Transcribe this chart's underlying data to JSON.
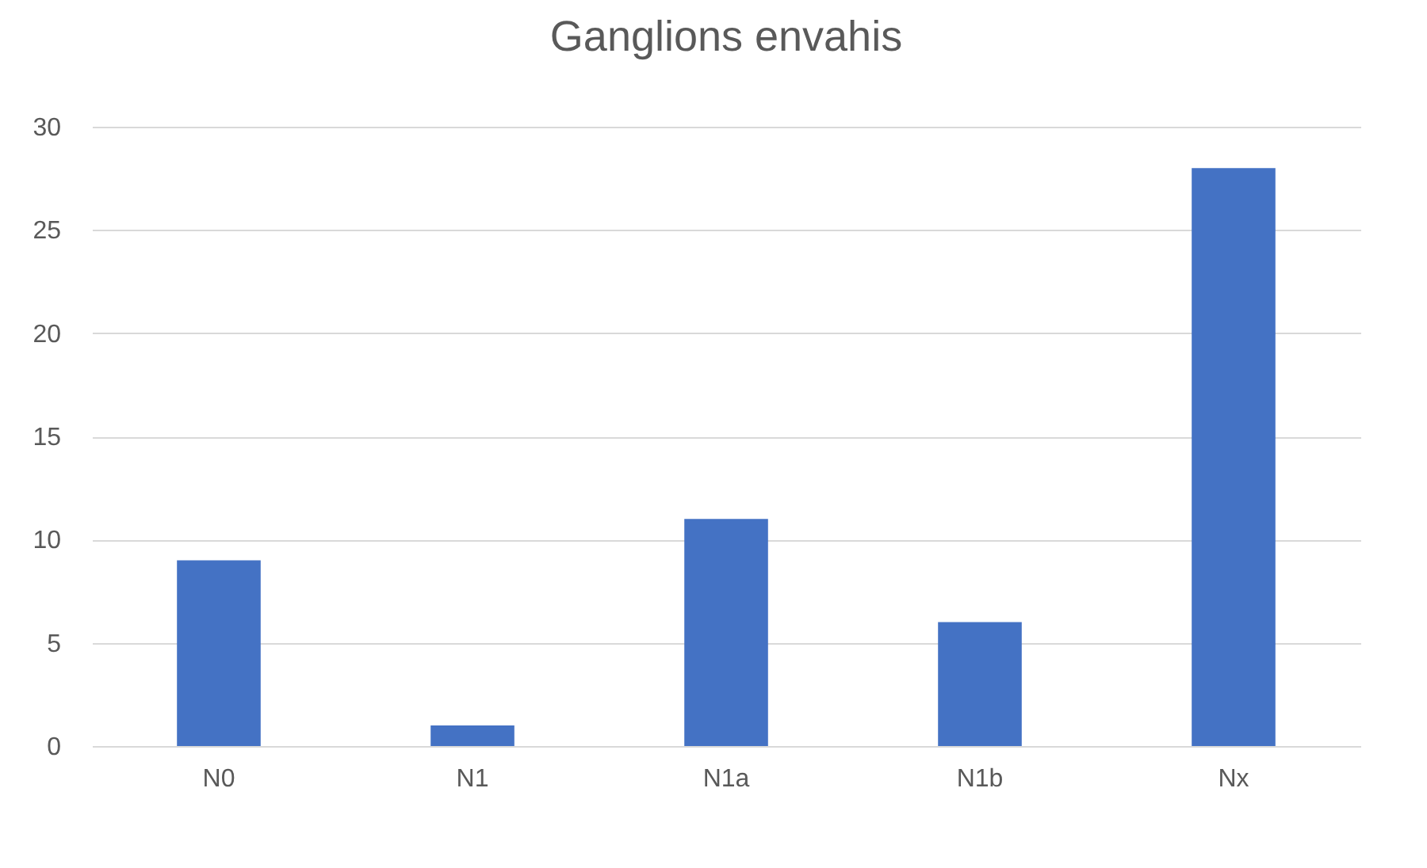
{
  "chart_data": {
    "type": "bar",
    "title": "Ganglions envahis",
    "categories": [
      "N0",
      "N1",
      "N1a",
      "N1b",
      "Nx"
    ],
    "values": [
      9,
      1,
      11,
      6,
      28
    ],
    "color": "#4472c4",
    "ylim": [
      0,
      30
    ],
    "yticks": [
      0,
      5,
      10,
      15,
      20,
      25,
      30
    ],
    "grid": "y"
  }
}
